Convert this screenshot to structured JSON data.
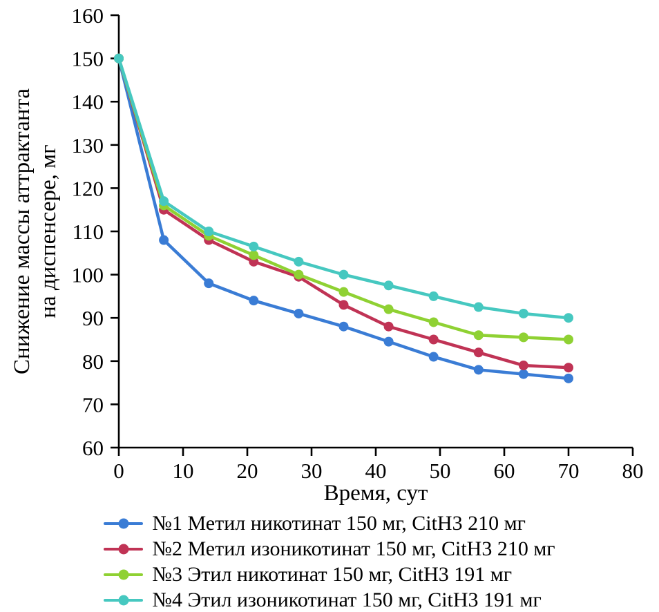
{
  "chart_data": {
    "type": "line",
    "title": "",
    "xlabel": "Время, сут",
    "ylabel": "Снижение массы аттрактанта на диспенсере, мг",
    "ylabel_lines": [
      "Снижение массы аттрактанта",
      "на диспенсере, мг"
    ],
    "xlim": [
      0,
      80
    ],
    "ylim": [
      60,
      160
    ],
    "xticks": [
      0,
      10,
      20,
      30,
      40,
      50,
      60,
      70,
      80
    ],
    "yticks": [
      60,
      70,
      80,
      90,
      100,
      110,
      120,
      130,
      140,
      150,
      160
    ],
    "grid": false,
    "legend_position": "bottom",
    "x": [
      0,
      7,
      14,
      21,
      28,
      35,
      42,
      49,
      56,
      63,
      70
    ],
    "series": [
      {
        "name": "№1 Метил никотинат 150 мг, CitH3 210 мг",
        "color": "#3a7cd5",
        "values": [
          150,
          108,
          98,
          94,
          91,
          88,
          84.5,
          81,
          78,
          77,
          76
        ]
      },
      {
        "name": "№2 Метил изоникотинат 150 мг, CitH3 210 мг",
        "color": "#c03355",
        "values": [
          150,
          115,
          108,
          103,
          99.5,
          93,
          88,
          85,
          82,
          79,
          78.5
        ]
      },
      {
        "name": "№3 Этил никотинат 150 мг, CitH3 191 мг",
        "color": "#8fd133",
        "values": [
          150,
          116,
          109,
          104.5,
          100,
          96,
          92,
          89,
          86,
          85.5,
          85
        ]
      },
      {
        "name": "№4 Этил изоникотинат 150 мг, CitH3 191 мг",
        "color": "#46c8c0",
        "values": [
          150,
          117,
          110,
          106.5,
          103,
          100,
          97.5,
          95,
          92.5,
          91,
          90
        ]
      }
    ]
  }
}
